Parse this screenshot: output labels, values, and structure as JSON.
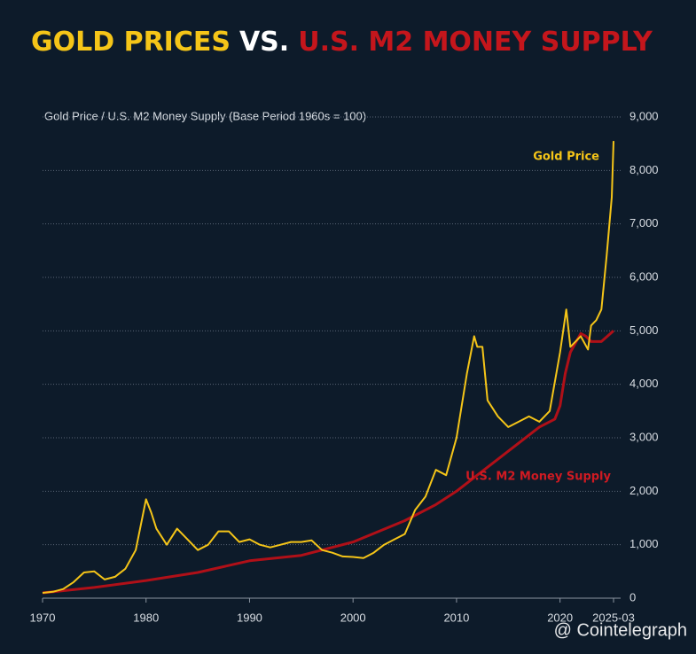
{
  "chart_data": {
    "type": "line",
    "title": {
      "part1": "GOLD PRICES",
      "part2": "VS.",
      "part3": "U.S. M2 MONEY SUPPLY"
    },
    "title_colors": [
      "#f5c518",
      "#ffffff",
      "#c4161c"
    ],
    "y_axis_label": "Gold Price / U.S. M2 Money Supply (Base Period 1960s = 100)",
    "watermark": "@ Cointelegraph",
    "xlim": [
      1970,
      2025.17
    ],
    "xticks": [
      1970,
      1980,
      1990,
      2000,
      2010,
      2020,
      {
        "value": 2025.17,
        "label": "2025-03"
      }
    ],
    "ylim": [
      0,
      9000
    ],
    "yticks": [
      0,
      {
        "value": 1000,
        "label": "1,000"
      },
      {
        "value": 2000,
        "label": "2,000"
      },
      {
        "value": 3000,
        "label": "3,000"
      },
      {
        "value": 4000,
        "label": "4,000"
      },
      {
        "value": 5000,
        "label": "5,000"
      },
      {
        "value": 6000,
        "label": "6,000"
      },
      {
        "value": 7000,
        "label": "7,000"
      },
      {
        "value": 8000,
        "label": "8,000"
      },
      {
        "value": 9000,
        "label": "9,000"
      }
    ],
    "grid": true,
    "series": [
      {
        "name": "Gold Price",
        "color": "#f5c518",
        "x": [
          1970,
          1971,
          1972,
          1973,
          1974,
          1975,
          1976,
          1977,
          1978,
          1979,
          1980,
          1980.5,
          1981,
          1982,
          1983,
          1984,
          1985,
          1986,
          1987,
          1988,
          1989,
          1990,
          1991,
          1992,
          1993,
          1994,
          1995,
          1996,
          1997,
          1998,
          1999,
          2000,
          2001,
          2002,
          2003,
          2004,
          2005,
          2006,
          2007,
          2008,
          2009,
          2010,
          2011,
          2011.7,
          2012,
          2012.5,
          2013,
          2014,
          2015,
          2016,
          2017,
          2018,
          2019,
          2020,
          2020.6,
          2021,
          2022,
          2022.7,
          2023,
          2023.5,
          2024,
          2024.5,
          2025,
          2025.17
        ],
        "values": [
          100,
          120,
          170,
          300,
          480,
          500,
          350,
          400,
          550,
          900,
          1850,
          1600,
          1300,
          1000,
          1300,
          1100,
          900,
          1000,
          1250,
          1250,
          1050,
          1100,
          1000,
          950,
          1000,
          1050,
          1050,
          1080,
          900,
          850,
          780,
          770,
          750,
          850,
          1000,
          1100,
          1200,
          1650,
          1900,
          2400,
          2300,
          3000,
          4200,
          4900,
          4700,
          4700,
          3700,
          3400,
          3200,
          3300,
          3400,
          3300,
          3500,
          4600,
          5400,
          4700,
          4900,
          4650,
          5100,
          5200,
          5400,
          6400,
          7500,
          8550
        ]
      },
      {
        "name": "U.S. M2 Money Supply",
        "color": "#b01018",
        "x": [
          1970,
          1975,
          1980,
          1985,
          1990,
          1995,
          2000,
          2005,
          2008,
          2010,
          2012,
          2015,
          2018,
          2019.5,
          2020,
          2020.5,
          2021,
          2022,
          2022.5,
          2023,
          2024,
          2025.17
        ],
        "values": [
          100,
          200,
          330,
          480,
          700,
          800,
          1050,
          1450,
          1750,
          2000,
          2300,
          2750,
          3200,
          3350,
          3600,
          4200,
          4600,
          4950,
          4900,
          4800,
          4800,
          5000
        ]
      }
    ]
  }
}
